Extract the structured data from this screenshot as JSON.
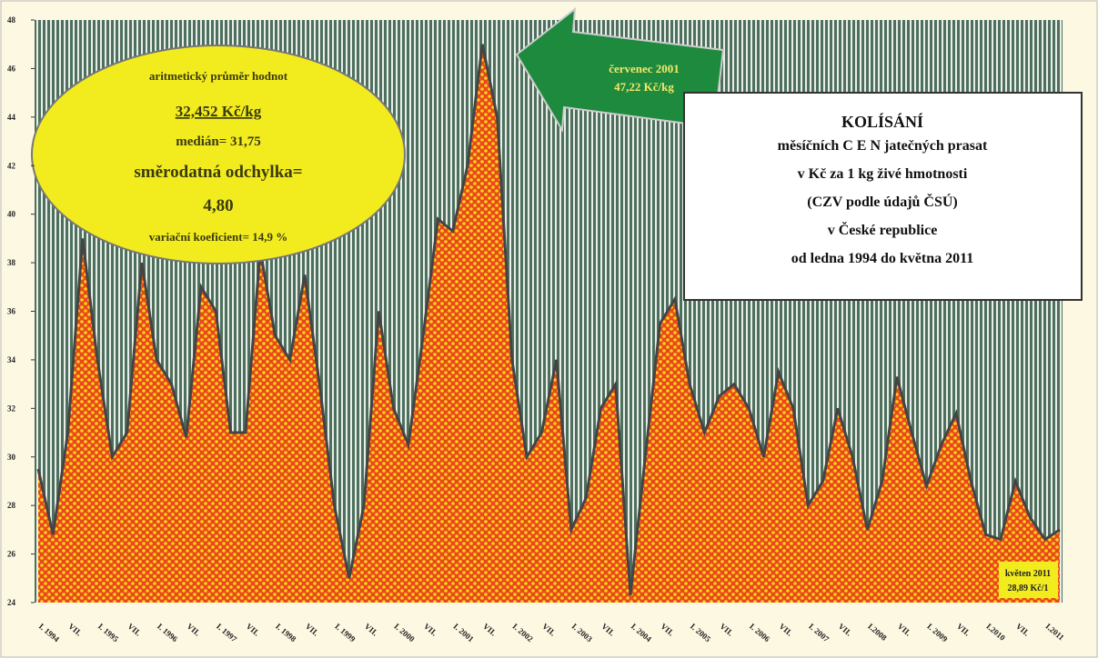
{
  "chart_data": {
    "type": "area",
    "categories": [
      "I. 1994",
      null,
      "VII.",
      null,
      "I. 1995",
      null,
      "VII.",
      null,
      "I. 1996",
      null,
      "VII.",
      null,
      "I. 1997",
      null,
      "VII.",
      null,
      "I. 1998",
      null,
      "VII.",
      null,
      "I. 1999",
      null,
      "VII.",
      null,
      "I. 2000",
      null,
      "VII.",
      null,
      "I. 2001",
      null,
      "VII.",
      null,
      "I. 2002",
      null,
      "VII.",
      null,
      "I. 2003",
      null,
      "VII.",
      null,
      "I. 2004",
      null,
      "VII.",
      null,
      "I. 2005",
      null,
      "VII.",
      null,
      "I. 2006",
      null,
      "VII.",
      null,
      "I. 2007",
      null,
      "VII.",
      null,
      "I.2008",
      null,
      "VII.",
      null,
      "I. 2009",
      null,
      "VII.",
      null,
      "I.2010",
      null,
      "VII.",
      null,
      "I.2011",
      null
    ],
    "values": [
      29.5,
      26.8,
      31,
      39,
      34,
      30,
      31,
      38,
      34,
      33,
      30.8,
      37,
      36,
      31,
      31,
      38.5,
      35,
      34,
      37.5,
      33,
      28,
      25,
      28,
      36,
      32,
      30.5,
      35,
      39.8,
      39.3,
      42,
      47,
      44,
      34,
      30,
      31,
      34,
      27,
      28.3,
      32,
      33,
      24.3,
      30,
      35.5,
      36.5,
      33,
      31,
      32.5,
      33,
      32,
      30,
      33.5,
      32,
      28,
      29,
      32,
      30,
      27,
      29,
      33.3,
      31,
      28.8,
      30.5,
      31.8,
      29,
      26.8,
      26.6,
      29,
      27.5,
      26.6,
      27
    ],
    "color": "#e8481c",
    "ylim": [
      24,
      48
    ],
    "yticks": [
      24,
      26,
      28,
      30,
      32,
      34,
      36,
      38,
      40,
      42,
      44,
      46,
      48
    ],
    "annotations": {
      "stats": [
        "aritmetický průměr hodnot",
        "32,452 Kč/kg",
        "medián= 31,75",
        "směrodatná odchylka=",
        "4,80",
        "variační koeficient= 14,9 %"
      ],
      "peak": [
        "červenec 2001",
        "47,22 Kč/kg"
      ],
      "title": [
        "KOLÍSÁNÍ",
        "měsíčních C E N  jatečných prasat",
        "v Kč za 1 kg živé hmotnosti",
        "(CZV podle údajů ČSÚ)",
        "v České republice",
        "od ledna 1994 do května 2011"
      ],
      "last": [
        "květen 2011",
        "28,89 Kč/1"
      ]
    }
  }
}
